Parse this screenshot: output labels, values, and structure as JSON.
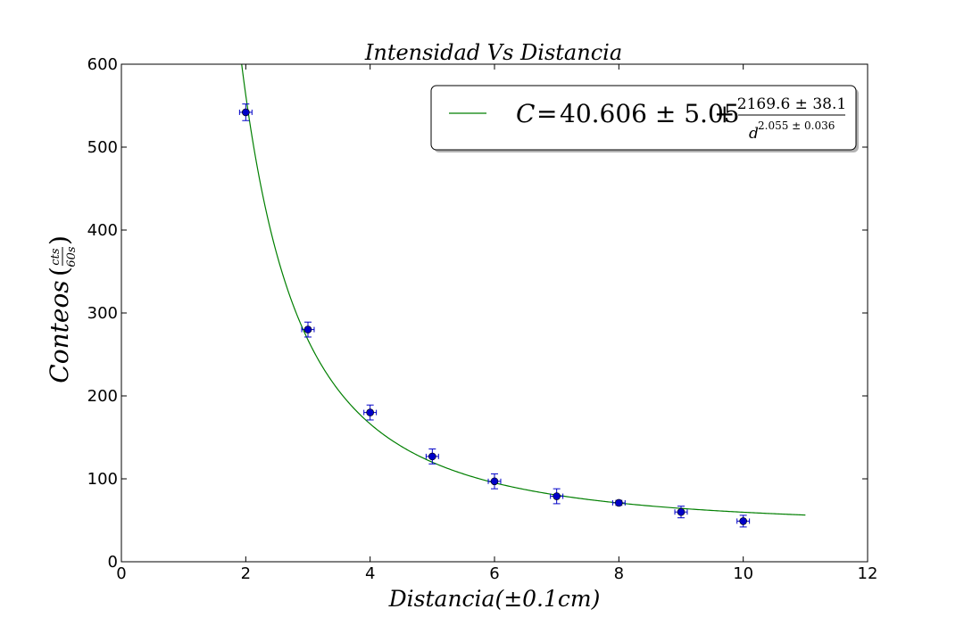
{
  "chart_data": {
    "type": "scatter",
    "title": "Intensidad Vs Distancia",
    "xlabel": "Distancia(±0.1cm)",
    "ylabel": {
      "base": "Conteos",
      "unit_numerator": "cts",
      "unit_denominator": "60s"
    },
    "xlim": [
      0,
      12
    ],
    "ylim": [
      0,
      600
    ],
    "xticks": [
      0,
      2,
      4,
      6,
      8,
      10,
      12
    ],
    "yticks": [
      0,
      100,
      200,
      300,
      400,
      500,
      600
    ],
    "grid": false,
    "legend_position": "top-right",
    "series": [
      {
        "kind": "errorbar-points",
        "color": "#0000c8",
        "x": [
          2,
          3,
          4,
          5,
          6,
          7,
          8,
          9,
          10
        ],
        "y": [
          542,
          280,
          180,
          127,
          97,
          79,
          71,
          60,
          49
        ],
        "xerr": 0.1,
        "yerr": [
          10,
          9,
          9,
          9,
          9,
          9,
          3,
          7,
          7
        ]
      },
      {
        "kind": "fit-line",
        "color": "#007f00",
        "legend": {
          "lhs": "C",
          "constant": "40.606 ± 5.05",
          "numerator": "2169.6 ± 38.1",
          "denominator_base": "d",
          "exponent": "2.055 ± 0.036"
        },
        "model": {
          "a": 40.606,
          "b": 2169.6,
          "n": 2.055
        },
        "x_range": [
          1.9,
          11
        ]
      }
    ]
  }
}
